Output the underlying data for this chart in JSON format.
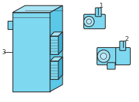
{
  "background_color": "#ffffff",
  "line_color": "#2a2a2a",
  "fill_color_blue": "#5bc8e8",
  "fill_color_mid": "#7dd8f0",
  "fill_color_light": "#a8e4f4",
  "fill_color_dark": "#3ab0d8",
  "fill_gray": "#e0e0e0",
  "label_fontsize": 6.5
}
